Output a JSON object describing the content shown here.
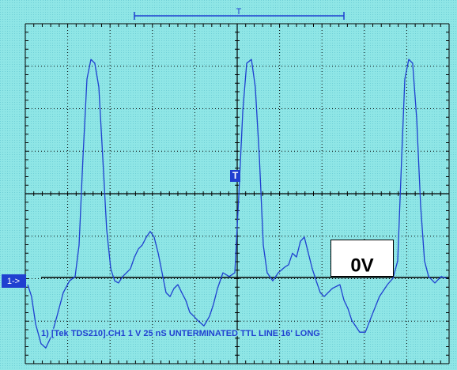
{
  "chart_data": {
    "type": "line",
    "caption": "1) [Tek TDS210].CH1  1  V   25 nS UNTERMINATED TTL LINE 16' LONG",
    "channel_marker": "1->",
    "trigger_marker": "T",
    "trigger_position_marker": "T",
    "reference_label": "0V",
    "reference_level": -1.97,
    "xlim": [
      0,
      250
    ],
    "ylim": [
      -4,
      4
    ],
    "x": [
      1.4,
      3.7,
      6.1,
      9.3,
      12.1,
      15.4,
      18.7,
      22.4,
      26.1,
      29.4,
      31.7,
      34.0,
      36.4,
      38.7,
      41.0,
      43.4,
      45.7,
      48.0,
      50.4,
      52.7,
      55.0,
      57.4,
      59.7,
      62.0,
      64.4,
      66.7,
      69.0,
      71.4,
      73.7,
      76.0,
      78.4,
      80.7,
      83.0,
      85.4,
      87.7,
      90.0,
      92.3,
      94.7,
      97.0,
      99.3,
      101.7,
      105.4,
      108.7,
      111.0,
      113.4,
      116.6,
      120.3,
      123.6,
      125.9,
      128.3,
      130.6,
      133.4,
      135.7,
      138.1,
      140.4,
      142.7,
      146.0,
      149.2,
      153.0,
      155.3,
      157.6,
      160.0,
      162.3,
      164.6,
      167.0,
      169.3,
      171.6,
      174.0,
      176.3,
      181.0,
      185.6,
      188.0,
      190.3,
      192.6,
      197.3,
      200.6,
      204.3,
      208.9,
      213.6,
      216.9,
      219.7,
      222.0,
      223.9,
      226.2,
      228.5,
      230.9,
      233.2,
      235.5,
      237.9,
      241.6,
      245.3,
      248.6
    ],
    "series": [
      {
        "color": "#1f3fd0",
        "values": [
          -2.14,
          -2.42,
          -3.07,
          -3.53,
          -3.63,
          -3.35,
          -2.88,
          -2.33,
          -2.05,
          -1.95,
          -1.21,
          0.84,
          2.7,
          3.16,
          3.07,
          2.51,
          0.84,
          -0.84,
          -1.77,
          -2.05,
          -2.1,
          -1.95,
          -1.86,
          -1.77,
          -1.49,
          -1.3,
          -1.21,
          -1.02,
          -0.89,
          -1.02,
          -1.4,
          -1.86,
          -2.33,
          -2.42,
          -2.23,
          -2.14,
          -2.33,
          -2.51,
          -2.79,
          -2.88,
          -2.98,
          -3.11,
          -2.88,
          -2.6,
          -2.23,
          -1.86,
          -1.95,
          -1.86,
          -0.09,
          1.95,
          3.07,
          3.16,
          2.51,
          0.84,
          -1.21,
          -1.86,
          -2.05,
          -1.86,
          -1.73,
          -1.67,
          -1.4,
          -1.49,
          -1.12,
          -1.02,
          -1.4,
          -1.77,
          -2.05,
          -2.33,
          -2.42,
          -2.23,
          -2.14,
          -2.51,
          -2.7,
          -2.98,
          -3.26,
          -3.26,
          -2.88,
          -2.42,
          -2.14,
          -1.99,
          -1.58,
          0.84,
          2.7,
          3.16,
          3.07,
          1.77,
          -0.28,
          -1.58,
          -1.95,
          -2.1,
          -1.95,
          -1.99
        ]
      }
    ]
  }
}
